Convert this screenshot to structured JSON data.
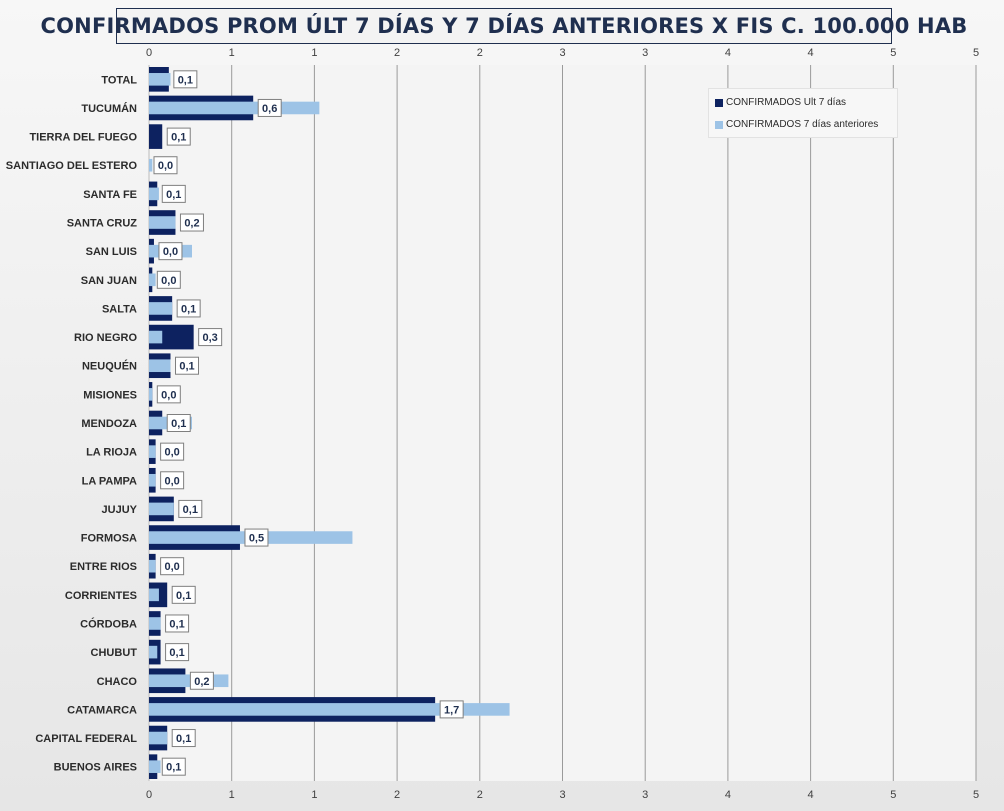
{
  "chart_data": {
    "type": "bar",
    "orientation": "horizontal",
    "title": "CONFIRMADOS PROM ÚLT 7 DÍAS Y 7 DÍAS ANTERIORES X FIS C. 100.000 HAB",
    "xlabel": "",
    "ylabel": "",
    "xlim": [
      0,
      5
    ],
    "x_ticks": [
      0,
      0.5,
      1,
      1.5,
      2,
      2.5,
      3,
      3.5,
      4,
      4.5,
      5
    ],
    "x_tick_labels": [
      "0",
      "1",
      "1",
      "2",
      "2",
      "3",
      "3",
      "4",
      "4",
      "5",
      "5"
    ],
    "grid": "vertical",
    "legend_position": "top-right",
    "categories": [
      "TOTAL",
      "TUCUMÁN",
      "TIERRA DEL FUEGO",
      "SANTIAGO DEL ESTERO",
      "SANTA FE",
      "SANTA CRUZ",
      "SAN LUIS",
      "SAN JUAN",
      "SALTA",
      "RIO NEGRO",
      "NEUQUÉN",
      "MISIONES",
      "MENDOZA",
      "LA RIOJA",
      "LA PAMPA",
      "JUJUY",
      "FORMOSA",
      "ENTRE RIOS",
      "CORRIENTES",
      "CÓRDOBA",
      "CHUBUT",
      "CHACO",
      "CATAMARCA",
      "CAPITAL FEDERAL",
      "BUENOS AIRES"
    ],
    "series": [
      {
        "name": "CONFIRMADOS Ult 7 días",
        "color": "#0d2260",
        "values": [
          0.12,
          0.63,
          0.08,
          0.0,
          0.05,
          0.16,
          0.03,
          0.02,
          0.14,
          0.27,
          0.13,
          0.02,
          0.08,
          0.04,
          0.04,
          0.15,
          0.55,
          0.04,
          0.11,
          0.07,
          0.07,
          0.22,
          1.73,
          0.11,
          0.05
        ]
      },
      {
        "name": "CONFIRMADOS 7 días anteriores",
        "color": "#9dc3e6",
        "values": [
          0.13,
          1.03,
          0.0,
          0.02,
          0.06,
          0.16,
          0.26,
          0.04,
          0.14,
          0.08,
          0.13,
          0.02,
          0.26,
          0.04,
          0.04,
          0.15,
          1.23,
          0.04,
          0.06,
          0.07,
          0.05,
          0.48,
          2.18,
          0.11,
          0.07
        ]
      }
    ],
    "data_labels": [
      "0,1",
      "0,6",
      "0,1",
      "0,0",
      "0,1",
      "0,2",
      "0,0",
      "0,0",
      "0,1",
      "0,3",
      "0,1",
      "0,0",
      "0,1",
      "0,0",
      "0,0",
      "0,1",
      "0,5",
      "0,0",
      "0,1",
      "0,1",
      "0,1",
      "0,2",
      "1,7",
      "0,1",
      "0,1"
    ]
  }
}
